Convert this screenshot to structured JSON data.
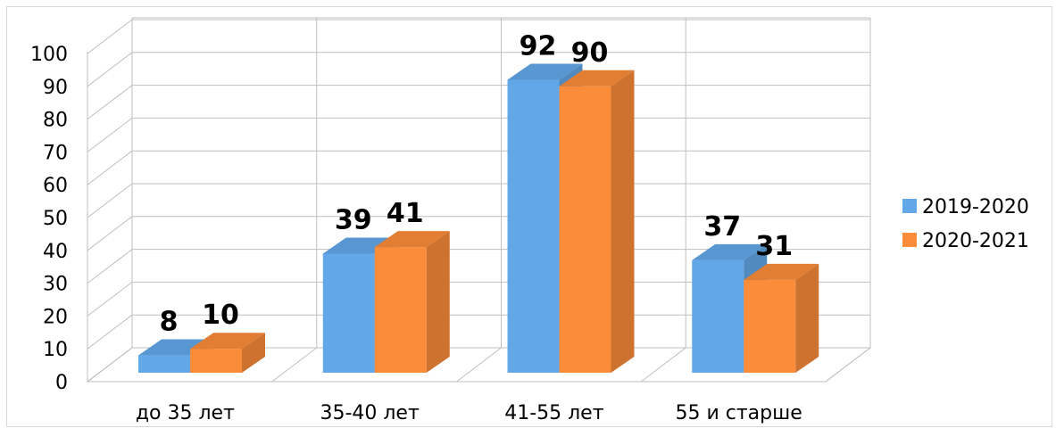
{
  "chart_data": {
    "type": "bar",
    "categories": [
      "до 35 лет",
      "35-40 лет",
      "41-55 лет",
      "55 и старше"
    ],
    "series": [
      {
        "name": "2019-2020",
        "values": [
          8,
          39,
          92,
          37
        ],
        "color": "#62a8e8"
      },
      {
        "name": "2020-2021",
        "values": [
          10,
          41,
          90,
          31
        ],
        "color": "#fb8c39"
      }
    ],
    "ylim": [
      0,
      100
    ],
    "yticks": [
      "0",
      "10",
      "20",
      "30",
      "40",
      "50",
      "60",
      "70",
      "80",
      "90",
      "100"
    ],
    "grid": true,
    "legend_position": "right",
    "style": "3d-clustered-column",
    "data_labels": true
  }
}
